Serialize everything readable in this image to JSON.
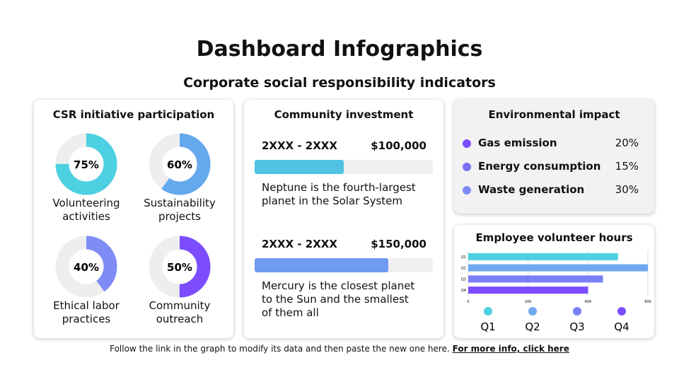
{
  "header": {
    "title": "Dashboard Infographics",
    "subtitle": "Corporate social responsibility indicators"
  },
  "csr": {
    "title": "CSR initiative participation",
    "items": [
      {
        "label": "Volunteering activities",
        "value": 75,
        "value_label": "75%",
        "color": "#4dd0e1"
      },
      {
        "label": "Sustainability projects",
        "value": 60,
        "value_label": "60%",
        "color": "#64a8ee"
      },
      {
        "label": "Ethical labor practices",
        "value": 40,
        "value_label": "40%",
        "color": "#7f8cf5"
      },
      {
        "label": "Community outreach",
        "value": 50,
        "value_label": "50%",
        "color": "#7c4dff"
      }
    ]
  },
  "investment": {
    "title": "Community investment",
    "xlim": [
      0,
      200000
    ],
    "items": [
      {
        "period": "2XXX - 2XXX",
        "value": 100000,
        "value_label": "$100,000",
        "color": "#4fc3e3",
        "text": "Neptune is the fourth-largest planet in the Solar System"
      },
      {
        "period": "2XXX - 2XXX",
        "value": 150000,
        "value_label": "$150,000",
        "color": "#6f9bf0",
        "text": "Mercury is the closest planet to the Sun and the smallest of them all"
      }
    ]
  },
  "environment": {
    "title": "Environmental impact",
    "items": [
      {
        "label": "Gas emission",
        "value": 20,
        "value_label": "20%",
        "color": "#7c4dff"
      },
      {
        "label": "Energy consumption",
        "value": 15,
        "value_label": "15%",
        "color": "#7b6ff5"
      },
      {
        "label": "Waste generation",
        "value": 30,
        "value_label": "30%",
        "color": "#7f8cf5"
      }
    ]
  },
  "chart_data": {
    "type": "bar",
    "orientation": "horizontal",
    "title": "Employee volunteer hours",
    "categories": [
      "Q1",
      "Q2",
      "Q3",
      "Q4"
    ],
    "values": [
      500,
      600,
      450,
      400
    ],
    "colors": [
      "#4dd0e1",
      "#6fa8f0",
      "#7b7ff5",
      "#7c4dff"
    ],
    "xlim": [
      0,
      600
    ],
    "xticks": [
      0,
      200,
      400,
      600
    ],
    "grid": true
  },
  "footer": {
    "text": "Follow the link in the graph to modify its data and then paste the new one here.",
    "link": "For more info, click here"
  }
}
